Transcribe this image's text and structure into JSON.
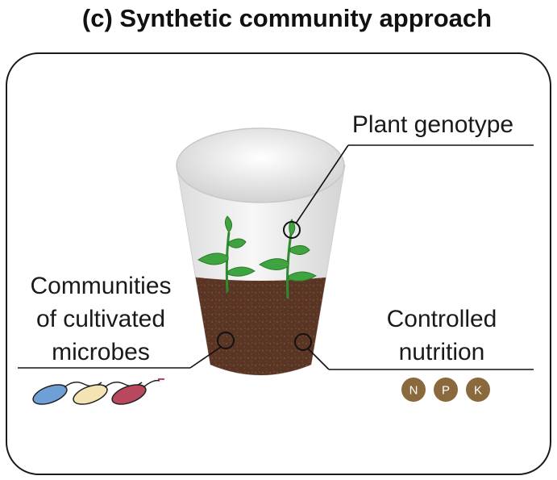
{
  "title": "(c) Synthetic community approach",
  "labels": {
    "plant_genotype": "Plant genotype",
    "communities": [
      "Communities",
      "of cultivated",
      "microbes"
    ],
    "nutrition": [
      "Controlled",
      "nutrition"
    ]
  },
  "nutrients": [
    "N",
    "P",
    "K"
  ],
  "colors": {
    "soil": "#5a3524",
    "leaf": "#3fa43f",
    "nutrient_badge": "#8a6a3c",
    "microbe_blue": "#6e9fd6",
    "microbe_yellow": "#f4e4b4",
    "microbe_red": "#b9485f"
  },
  "icons": {
    "pot": "pot-icon",
    "plant": "seedling-icon",
    "microbe": "bacterium-icon"
  }
}
